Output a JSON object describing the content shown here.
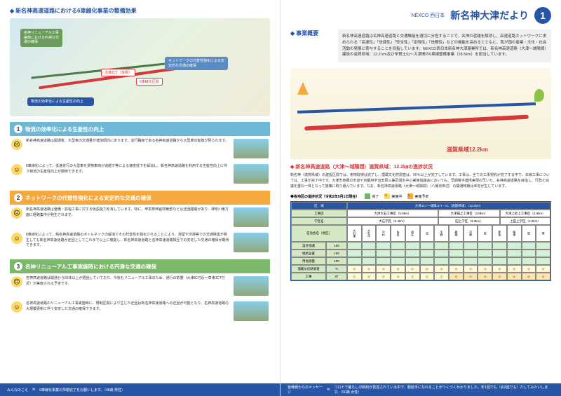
{
  "left": {
    "title": "新名神高速道路における6車線化事業の整備効果",
    "bubble1": "名神リニューアル工事実施における円滑な交通の確保",
    "bubble2": "ネットワークの代替性強化による安定的な交通の確保",
    "bubble3": "物流の効率化による生産性の向上",
    "jct_label": "大津JCT（仮称）",
    "lane_label": "6車線化区間",
    "h1": "物流の効率化による生産性の向上",
    "h1_num": "1",
    "t1a": "新名神高速道路は開通後、大型車の交通量が増加傾向にあります。並行路線である名神高速道路から大型車の転換が見られます。",
    "t1b": "6車線化によって、低速走行の大型車を貨物車両が追越す等による速度低下を解消し、新名神高速道路を利用する生産性向上に伴う物流の生産性向上が期待できます。",
    "h2": "ネットワークの代替性強化による安定的な交通の確保",
    "h2_num": "2",
    "t2a": "新名神高速道路は整備・拡幅工事に対する仮設能力を有しています。特に、甲賀挙西宮間東部などは迂回経路があり、神奈川東方面に経路集中が発生されます。",
    "t2b": "6車線化によって、新名神高速道路のボトルネックの解消でその代替性を強化されることにより、滞留や渋滞等での交通障害が発生しても新名神高速道路が迂回としてこれまで以上に機能し、新名神高速道路と名神高速道路相互での安定した交通の確保が期待できます。",
    "h3": "名神リニューアル工事実施時における円滑な交通の確保",
    "h3_num": "3",
    "t3a": "名神高速道路は開通から50年以上が経過していており、今後もリニューアル工事のため、通行の影響（大津IC付近～草津JCT付近）が実施される予定です。",
    "t3b": "名神高速道路のリニューアル工事実施時に、規制区間により生じた迂回は新名神高速道路への迂回が可能となり、名神高速道路の大規模更新に伴う安定した交通の確保できます。",
    "footer": "6車線化事業の早期完了をお願いします。（48歳 男性）",
    "footer_label": "みんなのこえ"
  },
  "right": {
    "header_sub": "NEXCO 西日本",
    "header_title": "新名神大津だより",
    "page_num": "1",
    "overview_title": "事業概要",
    "overview_text": "新名神高速道路は名神高速道路と交通機能を適切に分担することで、名神の混雑を解消し、高速道路ネットワークに求められる「高速性」「快適性」「安全性」「定時性」「信頼性」などの機能を高めるとともに、我が国の産業・文化・社会活動の発展に寄与することを目指しています。NEXCO西日本新名神大津事業所では、新名神高速道路（大津〜城陽間）建設の滋賀県域：12.2 km及び甲賀土山〜大津間の6車線整備事業（28.5km）を担当しています。",
    "map_label": "滋賀県域12.2km",
    "progress_title": "新名神高速道路（大津〜城陽間）滋賀県域：12.2㎞の進捗状況",
    "progress_text": "新名神（滋賀県域）の建設区間では、用地取得は完了し、埋蔵文化財調査は、90％以上が完了しています。工事は、全ての工事契約が完了する中で、本線工事については、工事が完了中です。大津市南郷の市道や京都府宇治田原三差区間を中心実施協議会においても、早期着手連携実現の早いた、名神高速道路を目指し、行政と協議を重ね一体となって施策に取り組んでいます。なお、新名神高速道路（大津〜城陽間）（八幡京田辺）の開通時期は未定が生じています。",
    "table_title": "各地区の進捗状況（令和2年9月1日現在）",
    "legend": {
      "done": "完了",
      "progress": "実施中",
      "planned": "実施予定"
    },
    "table": {
      "main_header": "大津JCT〜城陽JCT・IC（滋賀県域）（12.2km）",
      "areas": [
        "大津大石工事区（5.8km）",
        "大津田上工事区（3.9km）",
        "大津上砂上工事区（2.5km）"
      ],
      "subareas": [
        "大石学区（6.4km）",
        "田上学区（3.3km）",
        "上田上学区（2.5km）"
      ],
      "row_labels": [
        "自治会名（地区）",
        "設計協議",
        "幅杭設置",
        "用地測量",
        "埋蔵文化財調査",
        "工事"
      ],
      "cols": [
        "大石東",
        "大石中",
        "中村",
        "佐目",
        "南庄",
        "淀",
        "平野",
        "鹿畑",
        "中野",
        "枝",
        "新免",
        "稲津",
        "牧",
        "堂"
      ],
      "pct_rows": {
        "design": [
          "100",
          "",
          "",
          "100",
          "",
          "",
          "",
          "",
          "",
          "",
          "",
          "",
          "",
          ""
        ],
        "stake": [
          "100",
          "",
          "",
          "",
          "",
          "",
          "",
          "",
          "",
          "",
          "",
          "",
          "",
          ""
        ],
        "survey": [
          "100",
          "",
          "100",
          "",
          "",
          "",
          "",
          "",
          "100",
          "100",
          "",
          "",
          "100",
          ""
        ],
        "cultural": [
          "",
          "",
          "",
          "",
          "",
          "",
          "",
          "",
          "",
          "",
          "",
          "",
          "",
          ""
        ],
        "work": [
          "87",
          "",
          "",
          "80",
          "",
          "",
          "",
          "",
          "",
          "",
          "",
          "",
          "",
          ""
        ]
      }
    },
    "footer": "コロナで暮らしの制約が見直されている中で、順延手になれることがつくづくわかりました。年1回でも（会2回でも）たしてみたいします。（50歳 女性）",
    "footer_label": "皆様様からのメッセージ"
  },
  "colors": {
    "primary": "#2756a6",
    "accent": "#d63939",
    "h1": "#6db8d4",
    "h2": "#f4a840",
    "h3": "#7cb86c",
    "done": "#6db86c",
    "progress": "#ffd966",
    "planned": "#f4a840"
  }
}
